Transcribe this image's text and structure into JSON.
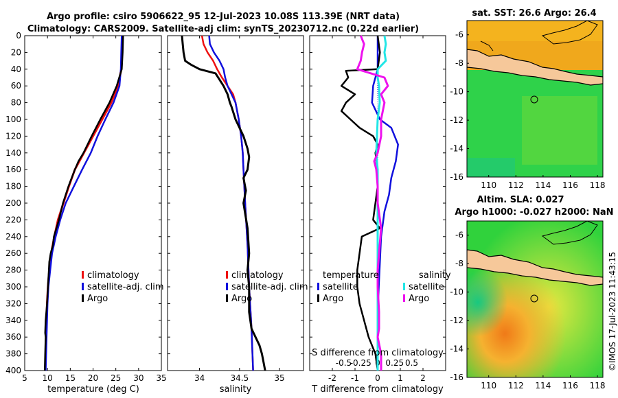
{
  "title_line1": "Argo profile: csiro 5906622_95 12-Jul-2023 10.08S 113.39E (NRT data)",
  "title_line2": "Climatology: CARS2009. Satellite-adj clim: synTS_20230712.nc (0.22d earlier)",
  "colors": {
    "climatology": "#ee1111",
    "satellite": "#1010dd",
    "argo": "#000000",
    "sal_sat": "#22e6e6",
    "sal_argo": "#ee11ee",
    "dotted": "#1010dd"
  },
  "depth_ticks": [
    "0",
    "20",
    "40",
    "60",
    "80",
    "100",
    "120",
    "140",
    "160",
    "180",
    "200",
    "220",
    "240",
    "260",
    "280",
    "300",
    "320",
    "340",
    "360",
    "380",
    "400"
  ],
  "legend_items": [
    "climatology",
    "satellite-adj. clim",
    "Argo"
  ],
  "diff_legend": {
    "temp_head": "temperature",
    "sal_head": "salinity",
    "satellite": "satellite",
    "argo": "Argo"
  },
  "credit": "©IMOS 17-Jul-2023 11:43:15",
  "chart_data": [
    {
      "type": "line",
      "name": "temperature",
      "xlabel": "temperature (deg C)",
      "xlim": [
        5,
        35
      ],
      "ylim": [
        400,
        0
      ],
      "x_ticks": [
        "5",
        "10",
        "15",
        "20",
        "25",
        "30",
        "35"
      ],
      "series": [
        {
          "name": "climatology",
          "depth": [
            0,
            20,
            40,
            60,
            80,
            100,
            120,
            140,
            150,
            160,
            180,
            200,
            220,
            240,
            260,
            280,
            300,
            320,
            340,
            360,
            380,
            400
          ],
          "values": [
            26.5,
            26.4,
            26.2,
            25.5,
            24,
            22,
            20,
            18,
            17,
            16,
            14.7,
            13.5,
            12.3,
            11.5,
            10.8,
            10.4,
            10.1,
            9.9,
            9.8,
            9.7,
            9.6,
            9.5
          ]
        },
        {
          "name": "satellite-adj. clim",
          "depth": [
            0,
            20,
            40,
            60,
            80,
            100,
            120,
            140,
            160,
            180,
            200,
            220,
            240,
            260,
            280,
            300,
            320,
            340,
            360,
            380,
            400
          ],
          "values": [
            26.3,
            26.2,
            26.1,
            25.8,
            24.5,
            22.7,
            21,
            19.5,
            17.6,
            15.8,
            14,
            12.8,
            11.8,
            11,
            10.6,
            10.2,
            10,
            9.9,
            9.8,
            9.7,
            9.6
          ]
        },
        {
          "name": "Argo",
          "depth": [
            0,
            20,
            40,
            60,
            80,
            100,
            120,
            140,
            150,
            160,
            180,
            200,
            220,
            240,
            250,
            260,
            270,
            280,
            300,
            320,
            340,
            355,
            360,
            380,
            400
          ],
          "values": [
            26.6,
            26.5,
            26.3,
            25.2,
            23.6,
            21.6,
            19.7,
            17.9,
            16.8,
            16,
            14.6,
            13.4,
            12.5,
            11.4,
            11.2,
            10.7,
            10.4,
            10.3,
            10.1,
            9.9,
            9.6,
            9.5,
            9.6,
            9.5,
            9.4
          ]
        }
      ]
    },
    {
      "type": "line",
      "name": "salinity",
      "xlabel": "salinity",
      "xlim": [
        33.6,
        35.3
      ],
      "ylim": [
        400,
        0
      ],
      "x_ticks": [
        "34",
        "34.5",
        "35"
      ],
      "x_tick_values": [
        34,
        34.5,
        35
      ],
      "series": [
        {
          "name": "climatology",
          "depth": [
            0,
            10,
            20,
            30,
            40,
            50,
            60,
            70,
            80,
            100,
            120,
            140,
            160,
            180,
            200,
            250,
            300,
            350,
            400
          ],
          "values": [
            34.03,
            34.05,
            34.1,
            34.17,
            34.22,
            34.28,
            34.35,
            34.42,
            34.45,
            34.49,
            34.52,
            34.54,
            34.55,
            34.56,
            34.57,
            34.6,
            34.62,
            34.65,
            34.67
          ]
        },
        {
          "name": "satellite-adj. clim",
          "depth": [
            0,
            10,
            20,
            30,
            40,
            50,
            60,
            70,
            80,
            100,
            120,
            140,
            160,
            180,
            200,
            250,
            300,
            350,
            400
          ],
          "values": [
            34.12,
            34.13,
            34.18,
            34.25,
            34.3,
            34.32,
            34.35,
            34.4,
            34.45,
            34.49,
            34.52,
            34.54,
            34.55,
            34.56,
            34.57,
            34.6,
            34.62,
            34.65,
            34.67
          ]
        },
        {
          "name": "Argo",
          "depth": [
            0,
            10,
            20,
            30,
            35,
            40,
            45,
            60,
            70,
            80,
            85,
            100,
            110,
            120,
            135,
            145,
            160,
            170,
            185,
            200,
            230,
            260,
            280,
            300,
            330,
            350,
            360,
            370,
            380,
            390,
            400
          ],
          "values": [
            33.78,
            33.79,
            33.8,
            33.82,
            33.9,
            34.0,
            34.2,
            34.3,
            34.35,
            34.38,
            34.4,
            34.45,
            34.5,
            34.55,
            34.6,
            34.62,
            34.6,
            34.55,
            34.58,
            34.55,
            34.6,
            34.62,
            34.6,
            34.62,
            34.62,
            34.65,
            34.7,
            34.75,
            34.78,
            34.8,
            34.82
          ]
        }
      ]
    },
    {
      "type": "line",
      "name": "difference",
      "xlabel": "T difference from climatology",
      "xlim": [
        -3,
        3
      ],
      "x_ticks": [
        "-2",
        "-1",
        "0",
        "1",
        "2"
      ],
      "x_tick_values": [
        -2,
        -1,
        0,
        1,
        2
      ],
      "x2label": "S difference from climatology",
      "x2_ticks": [
        "-0.5",
        "-0.25",
        "0",
        "0.25",
        "0.5"
      ],
      "x2_tick_values": [
        -0.5,
        -0.25,
        0,
        0.25,
        0.5
      ],
      "x2lim": [
        -1,
        1
      ],
      "ylim": [
        400,
        0
      ],
      "series": [
        {
          "name": "temperature satellite",
          "depth": [
            0,
            40,
            60,
            80,
            100,
            110,
            130,
            150,
            170,
            190,
            210,
            240,
            270,
            300,
            330,
            360,
            400
          ],
          "values": [
            0,
            0,
            -0.2,
            -0.25,
            0.1,
            0.6,
            0.9,
            0.8,
            0.6,
            0.5,
            0.3,
            0.15,
            0.1,
            0.05,
            0,
            0,
            0
          ]
        },
        {
          "name": "temperature Argo",
          "depth": [
            0,
            20,
            40,
            42,
            50,
            60,
            70,
            80,
            90,
            100,
            110,
            120,
            130,
            140,
            160,
            180,
            200,
            220,
            230,
            240,
            260,
            280,
            300,
            320,
            340,
            360,
            380,
            400
          ],
          "values": [
            0,
            0.1,
            0,
            -1.4,
            -1.3,
            -1.6,
            -1.0,
            -1.4,
            -1.6,
            -1.2,
            -0.8,
            -0.2,
            0.0,
            -0.1,
            0,
            0,
            -0.1,
            -0.2,
            0.1,
            -0.7,
            -0.8,
            -0.9,
            -0.9,
            -0.8,
            -0.6,
            -0.4,
            -0.1,
            0
          ]
        },
        {
          "name": "salinity satellite",
          "depth": [
            0,
            10,
            20,
            30,
            40,
            50,
            60,
            80,
            100,
            120,
            140,
            160,
            180,
            200,
            250,
            300,
            350,
            400
          ],
          "values": [
            0.1,
            0.12,
            0.1,
            0.12,
            0.0,
            0.0,
            0.02,
            0.03,
            0.0,
            -0.01,
            -0.02,
            0.0,
            0.0,
            0.0,
            0.0,
            0.0,
            0.0,
            0.0
          ]
        },
        {
          "name": "salinity Argo",
          "depth": [
            0,
            10,
            20,
            30,
            40,
            50,
            60,
            70,
            80,
            100,
            120,
            140,
            150,
            160,
            180,
            200,
            230,
            260,
            280,
            300,
            330,
            350,
            360,
            380,
            400
          ],
          "values": [
            -0.25,
            -0.2,
            -0.23,
            -0.25,
            -0.3,
            0.1,
            0.15,
            0.05,
            0.1,
            0.05,
            0.05,
            0.0,
            -0.05,
            -0.02,
            0.0,
            0.0,
            0.05,
            0.02,
            0.0,
            0.0,
            0.02,
            0.02,
            0.0,
            0.05,
            0.05
          ]
        }
      ]
    },
    {
      "type": "heatmap",
      "name": "sst-map",
      "title": "sat. SST: 26.6 Argo: 26.4",
      "x_ticks": [
        "110",
        "112",
        "114",
        "116",
        "118"
      ],
      "x_tick_values": [
        110,
        112,
        114,
        116,
        118
      ],
      "xlim": [
        108.4,
        118.4
      ],
      "y_ticks": [
        "-6",
        "-8",
        "-10",
        "-12",
        "-14",
        "-16"
      ],
      "y_tick_values": [
        -6,
        -8,
        -10,
        -12,
        -14,
        -16
      ],
      "ylim": [
        -16,
        -5
      ],
      "float_position": [
        113.39,
        -10.08
      ]
    },
    {
      "type": "heatmap",
      "name": "sla-map",
      "title_line1": "Altim. SLA: 0.027",
      "title_line2": "Argo h1000: -0.027 h2000: NaN",
      "x_ticks": [
        "110",
        "112",
        "114",
        "116",
        "118"
      ],
      "x_tick_values": [
        110,
        112,
        114,
        116,
        118
      ],
      "xlim": [
        108.4,
        118.4
      ],
      "y_ticks": [
        "-6",
        "-8",
        "-10",
        "-12",
        "-14",
        "-16"
      ],
      "y_tick_values": [
        -6,
        -8,
        -10,
        -12,
        -14,
        -16
      ],
      "ylim": [
        -16,
        -5
      ],
      "float_position": [
        113.39,
        -10.08
      ]
    }
  ]
}
